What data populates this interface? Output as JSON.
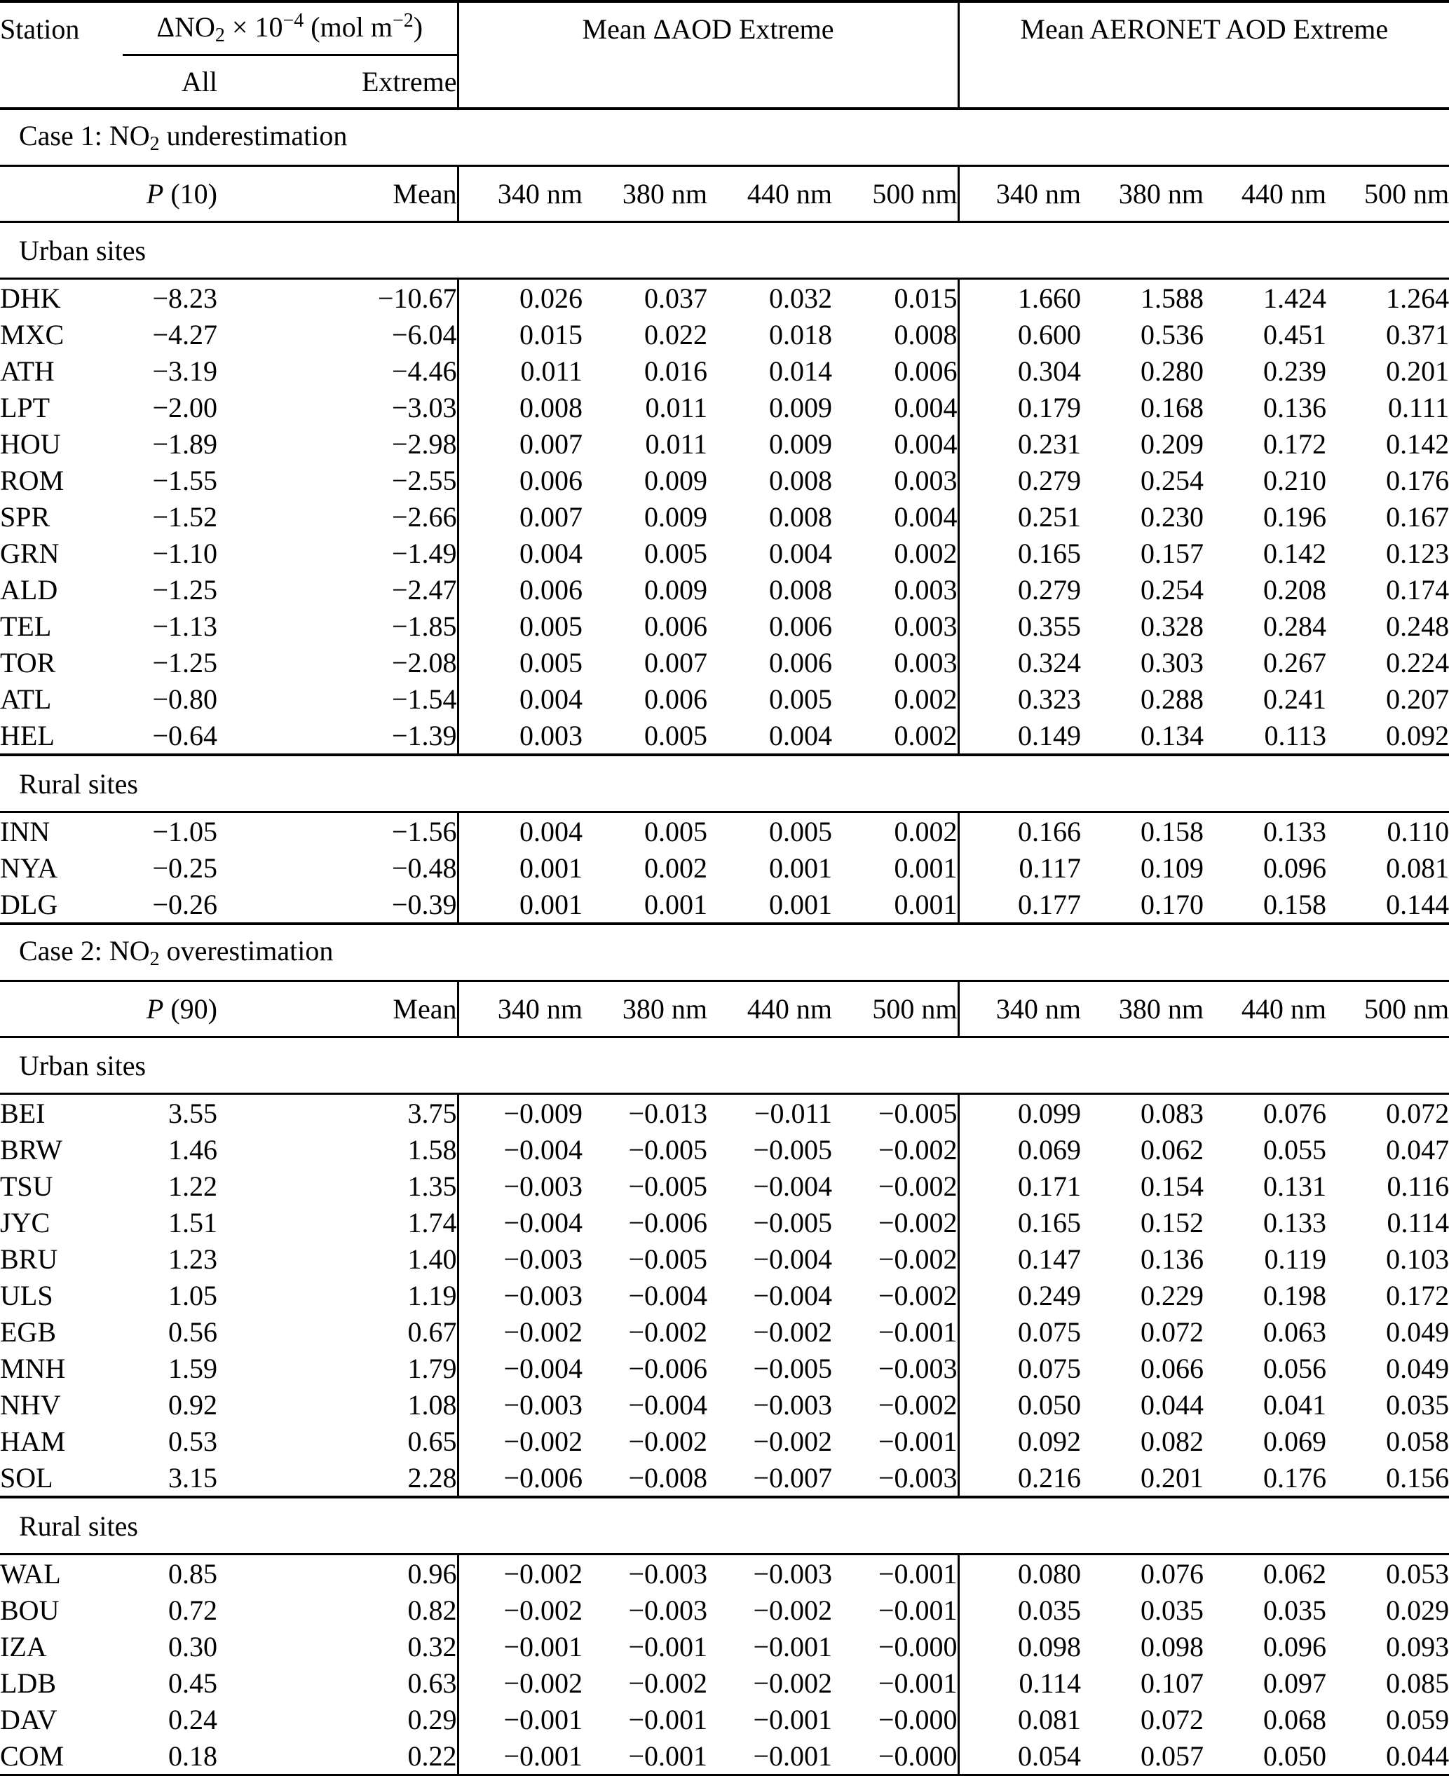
{
  "page": {
    "background": "#ffffff",
    "text_color": "#000000",
    "rule_color": "#000000"
  },
  "table": {
    "header": {
      "station": "Station",
      "no2_group": {
        "prefix": "ΔNO",
        "sub": "2",
        "times": " × 10",
        "exp": "−4",
        "unit_pre": " (mol m",
        "unit_exp": "−2",
        "unit_post": ")"
      },
      "delta_aod": "Mean ΔAOD Extreme",
      "aeronet": "Mean AERONET AOD Extreme",
      "all": "All",
      "extreme": "Extreme"
    },
    "mean_label": "Mean",
    "wavelengths": [
      "340 nm",
      "380 nm",
      "440 nm",
      "500 nm"
    ],
    "case1": {
      "title": {
        "pre": "Case 1: NO",
        "sub": "2",
        "post": " underestimation"
      },
      "percentile": {
        "p": "P",
        "paren": " (10)"
      },
      "urban_label": "Urban sites",
      "rural_label": "Rural sites",
      "urban_rows": [
        {
          "station": "DHK",
          "values": [
            "−8.23",
            "−10.67",
            "0.026",
            "0.037",
            "0.032",
            "0.015",
            "1.660",
            "1.588",
            "1.424",
            "1.264"
          ]
        },
        {
          "station": "MXC",
          "values": [
            "−4.27",
            "−6.04",
            "0.015",
            "0.022",
            "0.018",
            "0.008",
            "0.600",
            "0.536",
            "0.451",
            "0.371"
          ]
        },
        {
          "station": "ATH",
          "values": [
            "−3.19",
            "−4.46",
            "0.011",
            "0.016",
            "0.014",
            "0.006",
            "0.304",
            "0.280",
            "0.239",
            "0.201"
          ]
        },
        {
          "station": "LPT",
          "values": [
            "−2.00",
            "−3.03",
            "0.008",
            "0.011",
            "0.009",
            "0.004",
            "0.179",
            "0.168",
            "0.136",
            "0.111"
          ]
        },
        {
          "station": "HOU",
          "values": [
            "−1.89",
            "−2.98",
            "0.007",
            "0.011",
            "0.009",
            "0.004",
            "0.231",
            "0.209",
            "0.172",
            "0.142"
          ]
        },
        {
          "station": "ROM",
          "values": [
            "−1.55",
            "−2.55",
            "0.006",
            "0.009",
            "0.008",
            "0.003",
            "0.279",
            "0.254",
            "0.210",
            "0.176"
          ]
        },
        {
          "station": "SPR",
          "values": [
            "−1.52",
            "−2.66",
            "0.007",
            "0.009",
            "0.008",
            "0.004",
            "0.251",
            "0.230",
            "0.196",
            "0.167"
          ]
        },
        {
          "station": "GRN",
          "values": [
            "−1.10",
            "−1.49",
            "0.004",
            "0.005",
            "0.004",
            "0.002",
            "0.165",
            "0.157",
            "0.142",
            "0.123"
          ]
        },
        {
          "station": "ALD",
          "values": [
            "−1.25",
            "−2.47",
            "0.006",
            "0.009",
            "0.008",
            "0.003",
            "0.279",
            "0.254",
            "0.208",
            "0.174"
          ]
        },
        {
          "station": "TEL",
          "values": [
            "−1.13",
            "−1.85",
            "0.005",
            "0.006",
            "0.006",
            "0.003",
            "0.355",
            "0.328",
            "0.284",
            "0.248"
          ]
        },
        {
          "station": "TOR",
          "values": [
            "−1.25",
            "−2.08",
            "0.005",
            "0.007",
            "0.006",
            "0.003",
            "0.324",
            "0.303",
            "0.267",
            "0.224"
          ]
        },
        {
          "station": "ATL",
          "values": [
            "−0.80",
            "−1.54",
            "0.004",
            "0.006",
            "0.005",
            "0.002",
            "0.323",
            "0.288",
            "0.241",
            "0.207"
          ]
        },
        {
          "station": "HEL",
          "values": [
            "−0.64",
            "−1.39",
            "0.003",
            "0.005",
            "0.004",
            "0.002",
            "0.149",
            "0.134",
            "0.113",
            "0.092"
          ]
        }
      ],
      "rural_rows": [
        {
          "station": "INN",
          "values": [
            "−1.05",
            "−1.56",
            "0.004",
            "0.005",
            "0.005",
            "0.002",
            "0.166",
            "0.158",
            "0.133",
            "0.110"
          ]
        },
        {
          "station": "NYA",
          "values": [
            "−0.25",
            "−0.48",
            "0.001",
            "0.002",
            "0.001",
            "0.001",
            "0.117",
            "0.109",
            "0.096",
            "0.081"
          ]
        },
        {
          "station": "DLG",
          "values": [
            "−0.26",
            "−0.39",
            "0.001",
            "0.001",
            "0.001",
            "0.001",
            "0.177",
            "0.170",
            "0.158",
            "0.144"
          ]
        }
      ]
    },
    "case2": {
      "title": {
        "pre": "Case 2: NO",
        "sub": "2",
        "post": " overestimation"
      },
      "percentile": {
        "p": "P",
        "paren": " (90)"
      },
      "urban_label": "Urban sites",
      "rural_label": "Rural sites",
      "urban_rows": [
        {
          "station": "BEI",
          "values": [
            "3.55",
            "3.75",
            "−0.009",
            "−0.013",
            "−0.011",
            "−0.005",
            "0.099",
            "0.083",
            "0.076",
            "0.072"
          ]
        },
        {
          "station": "BRW",
          "values": [
            "1.46",
            "1.58",
            "−0.004",
            "−0.005",
            "−0.005",
            "−0.002",
            "0.069",
            "0.062",
            "0.055",
            "0.047"
          ]
        },
        {
          "station": "TSU",
          "values": [
            "1.22",
            "1.35",
            "−0.003",
            "−0.005",
            "−0.004",
            "−0.002",
            "0.171",
            "0.154",
            "0.131",
            "0.116"
          ]
        },
        {
          "station": "JYC",
          "values": [
            "1.51",
            "1.74",
            "−0.004",
            "−0.006",
            "−0.005",
            "−0.002",
            "0.165",
            "0.152",
            "0.133",
            "0.114"
          ]
        },
        {
          "station": "BRU",
          "values": [
            "1.23",
            "1.40",
            "−0.003",
            "−0.005",
            "−0.004",
            "−0.002",
            "0.147",
            "0.136",
            "0.119",
            "0.103"
          ]
        },
        {
          "station": "ULS",
          "values": [
            "1.05",
            "1.19",
            "−0.003",
            "−0.004",
            "−0.004",
            "−0.002",
            "0.249",
            "0.229",
            "0.198",
            "0.172"
          ]
        },
        {
          "station": "EGB",
          "values": [
            "0.56",
            "0.67",
            "−0.002",
            "−0.002",
            "−0.002",
            "−0.001",
            "0.075",
            "0.072",
            "0.063",
            "0.049"
          ]
        },
        {
          "station": "MNH",
          "values": [
            "1.59",
            "1.79",
            "−0.004",
            "−0.006",
            "−0.005",
            "−0.003",
            "0.075",
            "0.066",
            "0.056",
            "0.049"
          ]
        },
        {
          "station": "NHV",
          "values": [
            "0.92",
            "1.08",
            "−0.003",
            "−0.004",
            "−0.003",
            "−0.002",
            "0.050",
            "0.044",
            "0.041",
            "0.035"
          ]
        },
        {
          "station": "HAM",
          "values": [
            "0.53",
            "0.65",
            "−0.002",
            "−0.002",
            "−0.002",
            "−0.001",
            "0.092",
            "0.082",
            "0.069",
            "0.058"
          ]
        },
        {
          "station": "SOL",
          "values": [
            "3.15",
            "2.28",
            "−0.006",
            "−0.008",
            "−0.007",
            "−0.003",
            "0.216",
            "0.201",
            "0.176",
            "0.156"
          ]
        }
      ],
      "rural_rows": [
        {
          "station": "WAL",
          "values": [
            "0.85",
            "0.96",
            "−0.002",
            "−0.003",
            "−0.003",
            "−0.001",
            "0.080",
            "0.076",
            "0.062",
            "0.053"
          ]
        },
        {
          "station": "BOU",
          "values": [
            "0.72",
            "0.82",
            "−0.002",
            "−0.003",
            "−0.002",
            "−0.001",
            "0.035",
            "0.035",
            "0.035",
            "0.029"
          ]
        },
        {
          "station": "IZA",
          "values": [
            "0.30",
            "0.32",
            "−0.001",
            "−0.001",
            "−0.001",
            "−0.000",
            "0.098",
            "0.098",
            "0.096",
            "0.093"
          ]
        },
        {
          "station": "LDB",
          "values": [
            "0.45",
            "0.63",
            "−0.002",
            "−0.002",
            "−0.002",
            "−0.001",
            "0.114",
            "0.107",
            "0.097",
            "0.085"
          ]
        },
        {
          "station": "DAV",
          "values": [
            "0.24",
            "0.29",
            "−0.001",
            "−0.001",
            "−0.001",
            "−0.000",
            "0.081",
            "0.072",
            "0.068",
            "0.059"
          ]
        },
        {
          "station": "COM",
          "values": [
            "0.18",
            "0.22",
            "−0.001",
            "−0.001",
            "−0.001",
            "−0.000",
            "0.054",
            "0.057",
            "0.050",
            "0.044"
          ]
        }
      ]
    }
  }
}
